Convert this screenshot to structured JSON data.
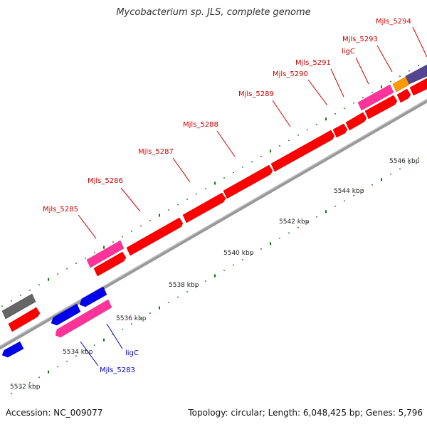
{
  "title": "Mycobacterium sp. JLS, complete genome",
  "footer": {
    "accession": "Accession: NC_009077",
    "summary": "Topology: circular; Length: 6,048,425 bp; Genes: 5,796"
  },
  "colors": {
    "background": "#ffffff",
    "backbone": "#999999",
    "gene_red": "#ff0000",
    "gene_pink": "#ff3399",
    "gene_blue": "#0000ee",
    "gene_gray": "#666666",
    "gene_orange": "#ff9900",
    "gene_purple": "#55448f",
    "tick_green": "#117711",
    "label_red": "#cc0000",
    "label_blue": "#0000cc"
  },
  "scale_labels": [
    "5532 kbp",
    "5534 kbp",
    "5536 kbp",
    "5538 kbp",
    "5540 kbp",
    "5542 kbp",
    "5544 kbp",
    "5546 kbp"
  ],
  "gene_labels": {
    "forward": [
      "Mjls_5285",
      "Mjls_5286",
      "Mjls_5287",
      "Mjls_5288",
      "Mjls_5289",
      "Mjls_5290",
      "Mjls_5291",
      "ligC",
      "Mjls_5293",
      "Mjls_5294"
    ],
    "reverse": [
      "ligC",
      "Mjls_5283"
    ]
  }
}
